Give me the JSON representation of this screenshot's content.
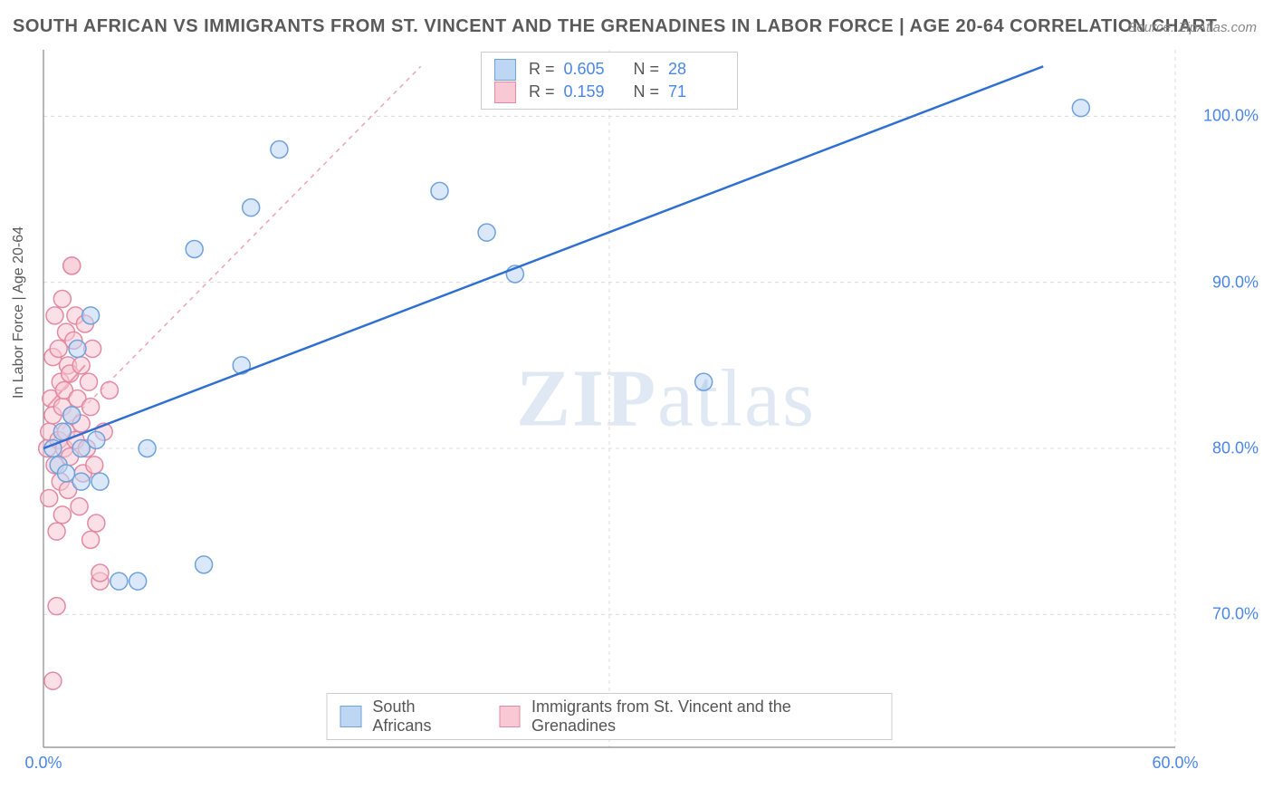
{
  "title": "SOUTH AFRICAN VS IMMIGRANTS FROM ST. VINCENT AND THE GRENADINES IN LABOR FORCE | AGE 20-64 CORRELATION CHART",
  "source": "Source: ZipAtlas.com",
  "ylabel": "In Labor Force | Age 20-64",
  "watermark_a": "ZIP",
  "watermark_b": "atlas",
  "chart": {
    "type": "scatter",
    "xlim": [
      0,
      60
    ],
    "ylim": [
      62,
      104
    ],
    "xtick_positions": [
      0,
      30,
      60
    ],
    "xtick_labels": [
      "0.0%",
      "",
      "60.0%"
    ],
    "ytick_positions": [
      70,
      80,
      90,
      100
    ],
    "ytick_labels": [
      "70.0%",
      "80.0%",
      "90.0%",
      "100.0%"
    ],
    "grid_color": "#dcdcdc",
    "axis_color": "#888888",
    "background_color": "#ffffff",
    "series": [
      {
        "name": "South Africans",
        "fill": "#bcd6f4",
        "stroke": "#6fa1db",
        "trend_color": "#2f6fd1",
        "trend_style": "solid",
        "trend_width": 2.5,
        "R": "0.605",
        "N": "28",
        "trend_from": [
          0,
          80
        ],
        "trend_to": [
          53,
          103
        ],
        "points": [
          [
            0.5,
            80
          ],
          [
            0.8,
            79
          ],
          [
            1.0,
            81
          ],
          [
            1.2,
            78.5
          ],
          [
            1.5,
            82
          ],
          [
            1.8,
            86
          ],
          [
            2.0,
            78
          ],
          [
            2.0,
            80
          ],
          [
            2.5,
            88
          ],
          [
            2.8,
            80.5
          ],
          [
            3.0,
            78
          ],
          [
            4.0,
            72
          ],
          [
            5.0,
            72
          ],
          [
            5.5,
            80
          ],
          [
            8.0,
            92
          ],
          [
            8.5,
            73
          ],
          [
            10.5,
            85
          ],
          [
            11.0,
            94.5
          ],
          [
            12.5,
            98
          ],
          [
            21.0,
            95.5
          ],
          [
            23.5,
            93
          ],
          [
            25.0,
            90.5
          ],
          [
            35.0,
            84
          ],
          [
            55.0,
            100.5
          ]
        ]
      },
      {
        "name": "Immigrants from St. Vincent and the Grenadines",
        "fill": "#f8c9d4",
        "stroke": "#e38aa2",
        "trend_color": "#e05a7d",
        "trend_style": "dashed",
        "trend_width": 1.5,
        "R": "0.159",
        "N": "71",
        "trend_from": [
          0,
          80
        ],
        "trend_to": [
          20,
          103
        ],
        "points": [
          [
            0.2,
            80
          ],
          [
            0.3,
            81
          ],
          [
            0.3,
            77
          ],
          [
            0.4,
            83
          ],
          [
            0.5,
            66
          ],
          [
            0.5,
            85.5
          ],
          [
            0.5,
            82
          ],
          [
            0.6,
            79
          ],
          [
            0.6,
            88
          ],
          [
            0.7,
            70.5
          ],
          [
            0.7,
            75
          ],
          [
            0.8,
            80.5
          ],
          [
            0.8,
            86
          ],
          [
            0.9,
            78
          ],
          [
            0.9,
            84
          ],
          [
            1.0,
            89
          ],
          [
            1.0,
            82.5
          ],
          [
            1.0,
            76
          ],
          [
            1.1,
            80
          ],
          [
            1.1,
            83.5
          ],
          [
            1.2,
            87
          ],
          [
            1.2,
            81
          ],
          [
            1.3,
            85
          ],
          [
            1.3,
            77.5
          ],
          [
            1.4,
            79.5
          ],
          [
            1.4,
            84.5
          ],
          [
            1.5,
            91
          ],
          [
            1.5,
            91
          ],
          [
            1.5,
            82
          ],
          [
            1.6,
            86.5
          ],
          [
            1.7,
            80.5
          ],
          [
            1.7,
            88
          ],
          [
            1.8,
            83
          ],
          [
            1.9,
            76.5
          ],
          [
            2.0,
            81.5
          ],
          [
            2.0,
            85
          ],
          [
            2.1,
            78.5
          ],
          [
            2.2,
            87.5
          ],
          [
            2.3,
            80
          ],
          [
            2.4,
            84
          ],
          [
            2.5,
            82.5
          ],
          [
            2.5,
            74.5
          ],
          [
            2.6,
            86
          ],
          [
            2.7,
            79
          ],
          [
            2.8,
            75.5
          ],
          [
            3.0,
            72
          ],
          [
            3.0,
            72.5
          ],
          [
            3.2,
            81
          ],
          [
            3.5,
            83.5
          ]
        ]
      }
    ],
    "reverse_trend": {
      "color": "#e05a7d",
      "solid_from": [
        0.2,
        82.5
      ],
      "solid_to": [
        0,
        80
      ],
      "width": 2
    }
  },
  "legend": {
    "items": [
      {
        "label": "South Africans",
        "fill": "#bcd6f4",
        "stroke": "#6fa1db"
      },
      {
        "label": "Immigrants from St. Vincent and the Grenadines",
        "fill": "#f8c9d4",
        "stroke": "#e38aa2"
      }
    ]
  }
}
